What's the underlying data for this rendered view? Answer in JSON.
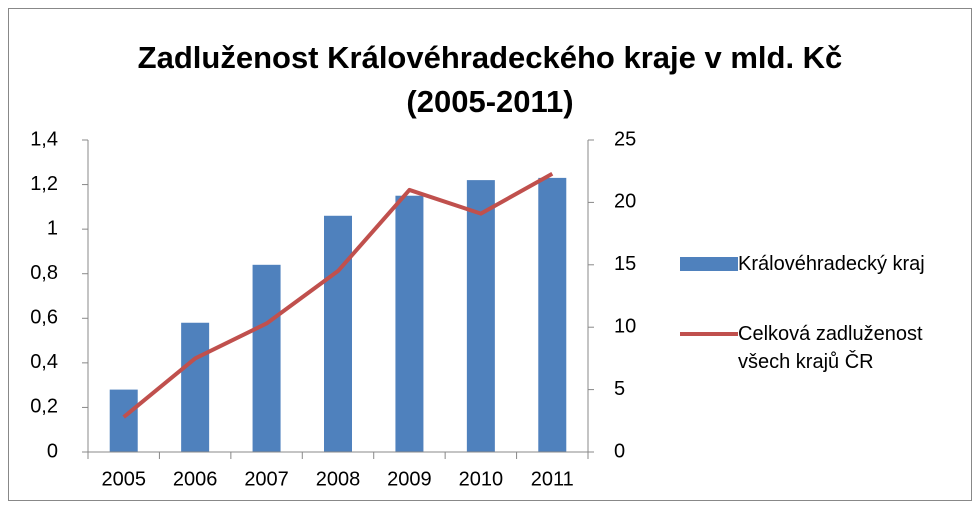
{
  "chart_data": {
    "type": "bar",
    "title": "Zadluženost Královéhradeckého kraje v mld. Kč (2005-2011)",
    "categories": [
      "2005",
      "2006",
      "2007",
      "2008",
      "2009",
      "2010",
      "2011"
    ],
    "series": [
      {
        "name": "Královéhradecký kraj",
        "type": "bar",
        "color": "#4f81bd",
        "values": [
          0.28,
          0.58,
          0.84,
          1.06,
          1.15,
          1.22,
          1.23
        ]
      },
      {
        "name": "Celková zadluženost všech krajů ČR",
        "type": "line",
        "axis": "y2",
        "color": "#c0504d",
        "values": [
          2.8,
          7.5,
          10.3,
          14.5,
          21,
          19.1,
          22.3
        ]
      }
    ],
    "ylim": [
      0,
      1.4
    ],
    "yticks": [
      0,
      {
        "value": 0.2,
        "label": "0,2"
      },
      {
        "value": 0.4,
        "label": "0,4"
      },
      {
        "value": 0.6,
        "label": "0,6"
      },
      {
        "value": 0.8,
        "label": "0,8"
      },
      1,
      {
        "value": 1.2,
        "label": "1,2"
      },
      {
        "value": 1.4,
        "label": "1,4"
      }
    ],
    "y2lim": [
      0,
      25
    ],
    "y2ticks": [
      0,
      5,
      10,
      15,
      20,
      25
    ],
    "grid": false,
    "legend": "right"
  }
}
